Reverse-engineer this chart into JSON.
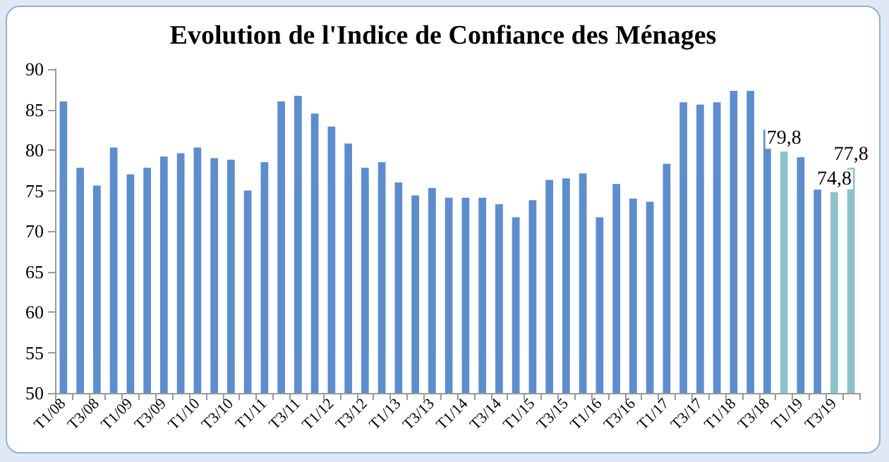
{
  "chart_data": {
    "type": "bar",
    "title": "Evolution de l'Indice de Confiance des Ménages",
    "categories": [
      "T1/08",
      null,
      "T3/08",
      null,
      "T1/09",
      null,
      "T3/09",
      null,
      "T1/10",
      null,
      "T3/10",
      null,
      "T1/11",
      null,
      "T3/11",
      null,
      "T1/12",
      null,
      "T3/12",
      null,
      "T1/13",
      null,
      "T3/13",
      null,
      "T1/14",
      null,
      "T3/14",
      null,
      "T1/15",
      null,
      "T3/15",
      null,
      "T1/16",
      null,
      "T3/16",
      null,
      "T1/17",
      null,
      "T3/17",
      null,
      "T1/18",
      null,
      "T3/18",
      null,
      "T1/19",
      null,
      "T3/19",
      null
    ],
    "values": [
      86.0,
      77.8,
      75.6,
      80.3,
      77.0,
      77.8,
      79.2,
      79.6,
      80.3,
      79.0,
      78.8,
      75.0,
      78.5,
      86.0,
      86.7,
      84.5,
      82.9,
      80.8,
      77.8,
      78.5,
      76.0,
      74.4,
      75.3,
      74.1,
      74.1,
      74.1,
      73.3,
      71.7,
      73.8,
      76.3,
      76.5,
      77.1,
      71.7,
      75.8,
      74.0,
      73.6,
      78.3,
      85.9,
      85.6,
      85.9,
      87.3,
      87.3,
      82.5,
      79.8,
      79.1,
      75.1,
      74.8,
      77.8
    ],
    "colors": [
      "#5b8dd0",
      "#5b8dd0",
      "#5b8dd0",
      "#5b8dd0",
      "#5b8dd0",
      "#5b8dd0",
      "#5b8dd0",
      "#5b8dd0",
      "#5b8dd0",
      "#5b8dd0",
      "#5b8dd0",
      "#5b8dd0",
      "#5b8dd0",
      "#5b8dd0",
      "#5b8dd0",
      "#5b8dd0",
      "#5b8dd0",
      "#5b8dd0",
      "#5b8dd0",
      "#5b8dd0",
      "#5b8dd0",
      "#5b8dd0",
      "#5b8dd0",
      "#5b8dd0",
      "#5b8dd0",
      "#5b8dd0",
      "#5b8dd0",
      "#5b8dd0",
      "#5b8dd0",
      "#5b8dd0",
      "#5b8dd0",
      "#5b8dd0",
      "#5b8dd0",
      "#5b8dd0",
      "#5b8dd0",
      "#5b8dd0",
      "#5b8dd0",
      "#5b8dd0",
      "#5b8dd0",
      "#5b8dd0",
      "#5b8dd0",
      "#5b8dd0",
      "#5b8dd0",
      "#8cc3c9",
      "#5b8dd0",
      "#5b8dd0",
      "#8cc3c9",
      "#8cc3c9"
    ],
    "value_labels": [
      null,
      null,
      null,
      null,
      null,
      null,
      null,
      null,
      null,
      null,
      null,
      null,
      null,
      null,
      null,
      null,
      null,
      null,
      null,
      null,
      null,
      null,
      null,
      null,
      null,
      null,
      null,
      null,
      null,
      null,
      null,
      null,
      null,
      null,
      null,
      null,
      null,
      null,
      null,
      null,
      null,
      null,
      null,
      "79,8",
      null,
      null,
      "74,8",
      "77,8"
    ],
    "ylim": [
      50,
      90
    ],
    "yticks": [
      50,
      55,
      60,
      65,
      70,
      75,
      80,
      85,
      90
    ],
    "grid": false
  }
}
